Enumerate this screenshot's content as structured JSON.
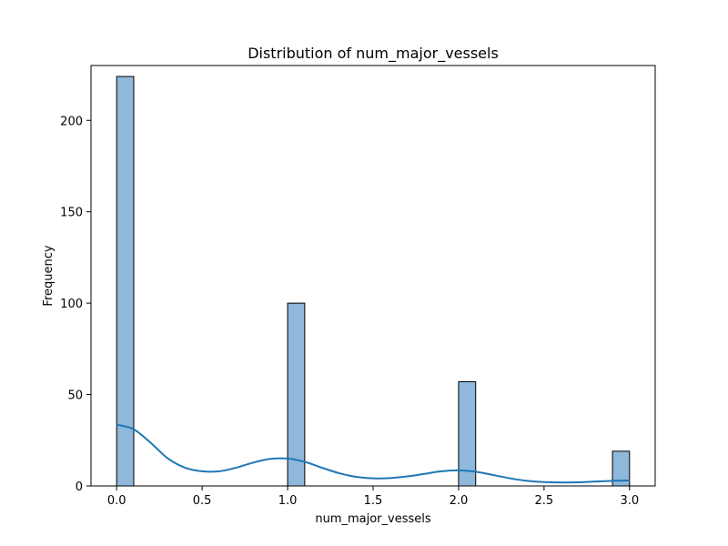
{
  "chart_data": {
    "type": "bar",
    "title": "Distribution of num_major_vessels",
    "xlabel": "num_major_vessels",
    "ylabel": "Frequency",
    "xlim": [
      -0.15,
      3.15
    ],
    "ylim": [
      0,
      230
    ],
    "xticks": [
      0.0,
      0.5,
      1.0,
      1.5,
      2.0,
      2.5,
      3.0
    ],
    "xtick_labels": [
      "0.0",
      "0.5",
      "1.0",
      "1.5",
      "2.0",
      "2.5",
      "3.0"
    ],
    "yticks": [
      0,
      50,
      100,
      150,
      200
    ],
    "ytick_labels": [
      "0",
      "50",
      "100",
      "150",
      "200"
    ],
    "bin_width": 0.1,
    "bins": [
      {
        "x0": 0.0,
        "value": 224
      },
      {
        "x0": 1.0,
        "value": 100
      },
      {
        "x0": 2.0,
        "value": 57
      },
      {
        "x0": 2.9,
        "value": 19
      }
    ],
    "kde": {
      "x": [
        0.0,
        0.1,
        0.2,
        0.3,
        0.4,
        0.5,
        0.6,
        0.7,
        0.8,
        0.9,
        1.0,
        1.1,
        1.2,
        1.3,
        1.4,
        1.5,
        1.6,
        1.7,
        1.8,
        1.9,
        2.0,
        2.1,
        2.2,
        2.3,
        2.4,
        2.5,
        2.6,
        2.7,
        2.8,
        2.9,
        3.0
      ],
      "y": [
        33.5,
        31.0,
        23.5,
        15.0,
        10.0,
        8.0,
        8.0,
        10.0,
        12.8,
        14.8,
        15.0,
        13.2,
        10.0,
        7.0,
        5.0,
        4.2,
        4.3,
        5.2,
        6.6,
        8.0,
        8.5,
        7.8,
        6.0,
        4.2,
        2.8,
        2.1,
        1.9,
        2.0,
        2.4,
        2.8,
        3.0
      ]
    },
    "colors": {
      "bar_fill": "#8fb8da",
      "bar_edge": "#000000",
      "kde_line": "#1f77b4"
    },
    "grid": false,
    "legend": "none"
  }
}
